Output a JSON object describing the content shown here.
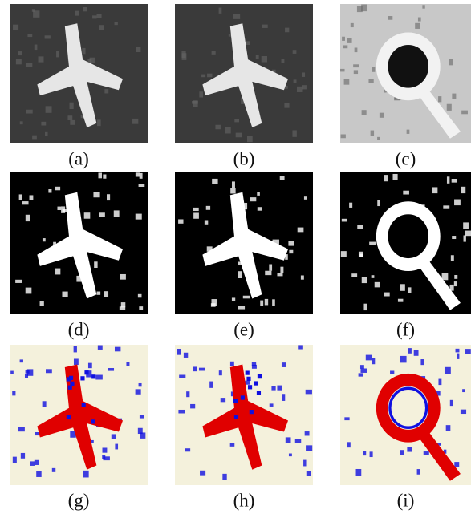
{
  "figure": {
    "panels": [
      {
        "label": "(a)"
      },
      {
        "label": "(b)"
      },
      {
        "label": "(c)"
      },
      {
        "label": "(d)"
      },
      {
        "label": "(e)"
      },
      {
        "label": "(f)"
      },
      {
        "label": "(g)"
      },
      {
        "label": "(h)"
      },
      {
        "label": "(i)"
      }
    ]
  }
}
